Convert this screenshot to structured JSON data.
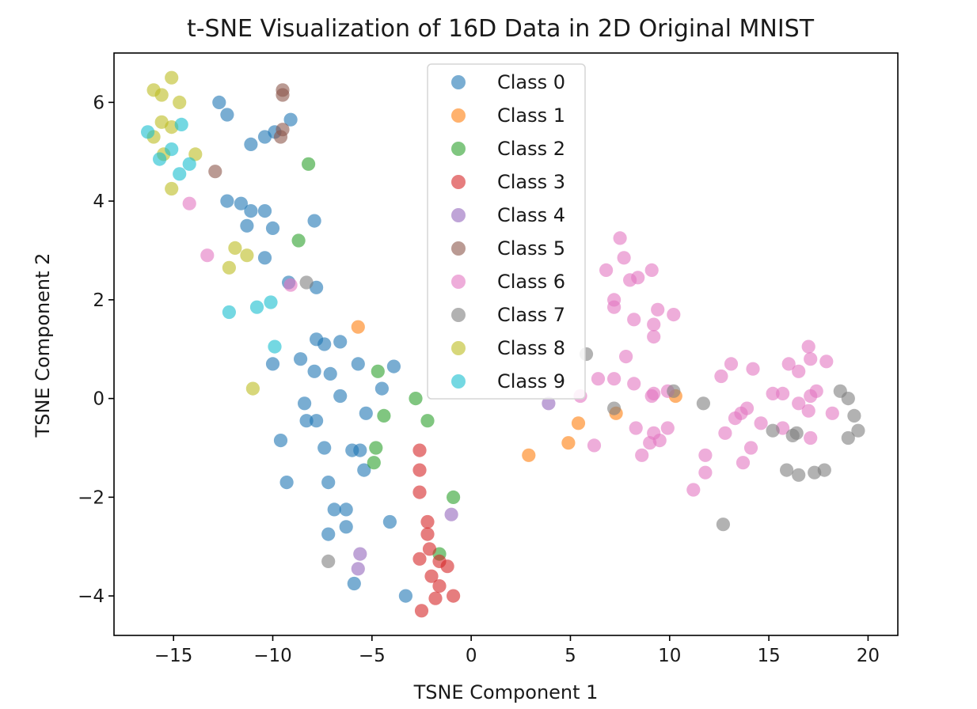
{
  "chart_data": {
    "type": "scatter",
    "title": "t-SNE Visualization of 16D Data in 2D Original MNIST",
    "xlabel": "TSNE Component 1",
    "ylabel": "TSNE Component 2",
    "xlim": [
      -18,
      21.5
    ],
    "ylim": [
      -4.8,
      7.0
    ],
    "xticks": [
      -15,
      -10,
      -5,
      0,
      5,
      10,
      15,
      20
    ],
    "xtick_labels": [
      "−15",
      "−10",
      "−5",
      "0",
      "5",
      "10",
      "15",
      "20"
    ],
    "yticks": [
      -4,
      -2,
      0,
      2,
      4,
      6
    ],
    "ytick_labels": [
      "−4",
      "−2",
      "0",
      "2",
      "4",
      "6"
    ],
    "grid": false,
    "legend_position": "top-center",
    "series": [
      {
        "name": "Class 0",
        "color": "#1f77b4",
        "points": [
          [
            -12.7,
            6.0
          ],
          [
            -12.3,
            5.75
          ],
          [
            -11.1,
            5.15
          ],
          [
            -10.4,
            5.3
          ],
          [
            -9.9,
            5.4
          ],
          [
            -9.1,
            5.65
          ],
          [
            -12.3,
            4.0
          ],
          [
            -11.6,
            3.95
          ],
          [
            -11.1,
            3.8
          ],
          [
            -10.4,
            3.8
          ],
          [
            -11.3,
            3.5
          ],
          [
            -10.0,
            3.45
          ],
          [
            -7.9,
            3.6
          ],
          [
            -10.4,
            2.85
          ],
          [
            -9.2,
            2.35
          ],
          [
            -7.8,
            2.25
          ],
          [
            -7.8,
            1.2
          ],
          [
            -7.4,
            1.1
          ],
          [
            -6.6,
            1.15
          ],
          [
            -8.6,
            0.8
          ],
          [
            -7.9,
            0.55
          ],
          [
            -7.1,
            0.5
          ],
          [
            -10.0,
            0.7
          ],
          [
            -5.7,
            0.7
          ],
          [
            -3.9,
            0.65
          ],
          [
            -4.5,
            0.2
          ],
          [
            -6.6,
            0.05
          ],
          [
            -8.4,
            -0.1
          ],
          [
            -8.3,
            -0.45
          ],
          [
            -7.8,
            -0.45
          ],
          [
            -5.3,
            -0.3
          ],
          [
            -9.6,
            -0.85
          ],
          [
            -7.4,
            -1.0
          ],
          [
            -6.0,
            -1.05
          ],
          [
            -5.6,
            -1.05
          ],
          [
            -5.4,
            -1.45
          ],
          [
            -9.3,
            -1.7
          ],
          [
            -7.2,
            -1.7
          ],
          [
            -6.9,
            -2.25
          ],
          [
            -6.3,
            -2.25
          ],
          [
            -6.3,
            -2.6
          ],
          [
            -4.1,
            -2.5
          ],
          [
            -7.2,
            -2.75
          ],
          [
            -5.9,
            -3.75
          ],
          [
            -3.3,
            -4.0
          ]
        ]
      },
      {
        "name": "Class 1",
        "color": "#ff7f0e",
        "points": [
          [
            -5.7,
            1.45
          ],
          [
            2.9,
            -1.15
          ],
          [
            4.9,
            -0.9
          ],
          [
            5.4,
            -0.5
          ],
          [
            7.3,
            -0.3
          ],
          [
            10.3,
            0.05
          ]
        ]
      },
      {
        "name": "Class 2",
        "color": "#2ca02c",
        "points": [
          [
            -8.2,
            4.75
          ],
          [
            -8.7,
            3.2
          ],
          [
            -4.7,
            0.55
          ],
          [
            -2.8,
            0.0
          ],
          [
            -4.4,
            -0.35
          ],
          [
            -2.2,
            -0.45
          ],
          [
            -4.8,
            -1.0
          ],
          [
            -4.9,
            -1.3
          ],
          [
            -0.9,
            -2.0
          ],
          [
            -1.6,
            -3.15
          ]
        ]
      },
      {
        "name": "Class 3",
        "color": "#d62728",
        "points": [
          [
            -2.6,
            -1.05
          ],
          [
            -2.6,
            -1.45
          ],
          [
            -2.6,
            -1.9
          ],
          [
            -2.2,
            -2.5
          ],
          [
            -2.2,
            -2.75
          ],
          [
            -2.1,
            -3.05
          ],
          [
            -2.6,
            -3.25
          ],
          [
            -1.6,
            -3.3
          ],
          [
            -1.2,
            -3.4
          ],
          [
            -2.0,
            -3.6
          ],
          [
            -1.6,
            -3.8
          ],
          [
            -0.9,
            -4.0
          ],
          [
            -1.8,
            -4.05
          ],
          [
            -2.5,
            -4.3
          ]
        ]
      },
      {
        "name": "Class 4",
        "color": "#9467bd",
        "points": [
          [
            3.9,
            -0.1
          ],
          [
            -1.0,
            -2.35
          ],
          [
            -5.6,
            -3.15
          ],
          [
            -5.7,
            -3.45
          ]
        ]
      },
      {
        "name": "Class 5",
        "color": "#8c564b",
        "points": [
          [
            -9.5,
            6.25
          ],
          [
            -9.5,
            6.15
          ],
          [
            -9.5,
            5.45
          ],
          [
            -9.6,
            5.3
          ],
          [
            -12.9,
            4.6
          ]
        ]
      },
      {
        "name": "Class 6",
        "color": "#e377c2",
        "points": [
          [
            -14.2,
            3.95
          ],
          [
            -13.3,
            2.9
          ],
          [
            -9.1,
            2.3
          ],
          [
            7.5,
            3.25
          ],
          [
            7.7,
            2.85
          ],
          [
            6.8,
            2.6
          ],
          [
            8.0,
            2.4
          ],
          [
            8.4,
            2.45
          ],
          [
            9.1,
            2.6
          ],
          [
            7.2,
            2.0
          ],
          [
            7.2,
            1.85
          ],
          [
            8.2,
            1.6
          ],
          [
            9.4,
            1.8
          ],
          [
            9.2,
            1.5
          ],
          [
            10.2,
            1.7
          ],
          [
            9.2,
            1.25
          ],
          [
            7.8,
            0.85
          ],
          [
            6.4,
            0.4
          ],
          [
            7.2,
            0.4
          ],
          [
            8.2,
            0.3
          ],
          [
            9.1,
            0.05
          ],
          [
            9.2,
            0.1
          ],
          [
            9.9,
            0.15
          ],
          [
            5.5,
            0.05
          ],
          [
            6.2,
            -0.95
          ],
          [
            8.3,
            -0.6
          ],
          [
            8.6,
            -1.15
          ],
          [
            9.0,
            -0.9
          ],
          [
            9.2,
            -0.7
          ],
          [
            9.5,
            -0.85
          ],
          [
            9.9,
            -0.6
          ],
          [
            11.2,
            -1.85
          ],
          [
            11.8,
            -1.15
          ],
          [
            11.8,
            -1.5
          ],
          [
            12.6,
            0.45
          ],
          [
            13.1,
            0.7
          ],
          [
            12.8,
            -0.7
          ],
          [
            13.3,
            -0.4
          ],
          [
            13.6,
            -0.3
          ],
          [
            13.9,
            -0.2
          ],
          [
            14.2,
            0.6
          ],
          [
            14.6,
            -0.5
          ],
          [
            13.7,
            -1.3
          ],
          [
            14.1,
            -1.0
          ],
          [
            15.2,
            0.1
          ],
          [
            15.7,
            0.1
          ],
          [
            15.7,
            -0.6
          ],
          [
            16.0,
            0.7
          ],
          [
            16.5,
            0.55
          ],
          [
            16.5,
            -0.1
          ],
          [
            17.0,
            1.05
          ],
          [
            17.1,
            0.8
          ],
          [
            17.1,
            0.05
          ],
          [
            17.0,
            -0.25
          ],
          [
            17.4,
            0.15
          ],
          [
            17.1,
            -0.8
          ],
          [
            17.9,
            0.75
          ],
          [
            18.2,
            -0.3
          ]
        ]
      },
      {
        "name": "Class 7",
        "color": "#7f7f7f",
        "points": [
          [
            -8.3,
            2.35
          ],
          [
            5.8,
            0.9
          ],
          [
            7.2,
            -0.2
          ],
          [
            10.2,
            0.15
          ],
          [
            11.7,
            -0.1
          ],
          [
            15.2,
            -0.65
          ],
          [
            16.2,
            -0.75
          ],
          [
            16.4,
            -0.7
          ],
          [
            15.9,
            -1.45
          ],
          [
            16.5,
            -1.55
          ],
          [
            17.3,
            -1.5
          ],
          [
            17.8,
            -1.45
          ],
          [
            18.6,
            0.15
          ],
          [
            19.0,
            0.0
          ],
          [
            19.3,
            -0.35
          ],
          [
            19.5,
            -0.65
          ],
          [
            19.0,
            -0.8
          ],
          [
            12.7,
            -2.55
          ],
          [
            -7.2,
            -3.3
          ]
        ]
      },
      {
        "name": "Class 8",
        "color": "#bcbd22",
        "points": [
          [
            -16.0,
            6.25
          ],
          [
            -15.6,
            6.15
          ],
          [
            -15.1,
            6.5
          ],
          [
            -14.7,
            6.0
          ],
          [
            -15.6,
            5.6
          ],
          [
            -15.1,
            5.5
          ],
          [
            -16.0,
            5.3
          ],
          [
            -15.5,
            4.95
          ],
          [
            -13.9,
            4.95
          ],
          [
            -15.1,
            4.25
          ],
          [
            -12.2,
            2.65
          ],
          [
            -11.9,
            3.05
          ],
          [
            -11.3,
            2.9
          ],
          [
            -11.0,
            0.2
          ]
        ]
      },
      {
        "name": "Class 9",
        "color": "#17becf",
        "points": [
          [
            -16.3,
            5.4
          ],
          [
            -14.6,
            5.55
          ],
          [
            -15.1,
            5.05
          ],
          [
            -15.7,
            4.85
          ],
          [
            -14.2,
            4.75
          ],
          [
            -14.7,
            4.55
          ],
          [
            -12.2,
            1.75
          ],
          [
            -10.8,
            1.85
          ],
          [
            -10.1,
            1.95
          ],
          [
            -9.9,
            1.05
          ]
        ]
      }
    ]
  }
}
